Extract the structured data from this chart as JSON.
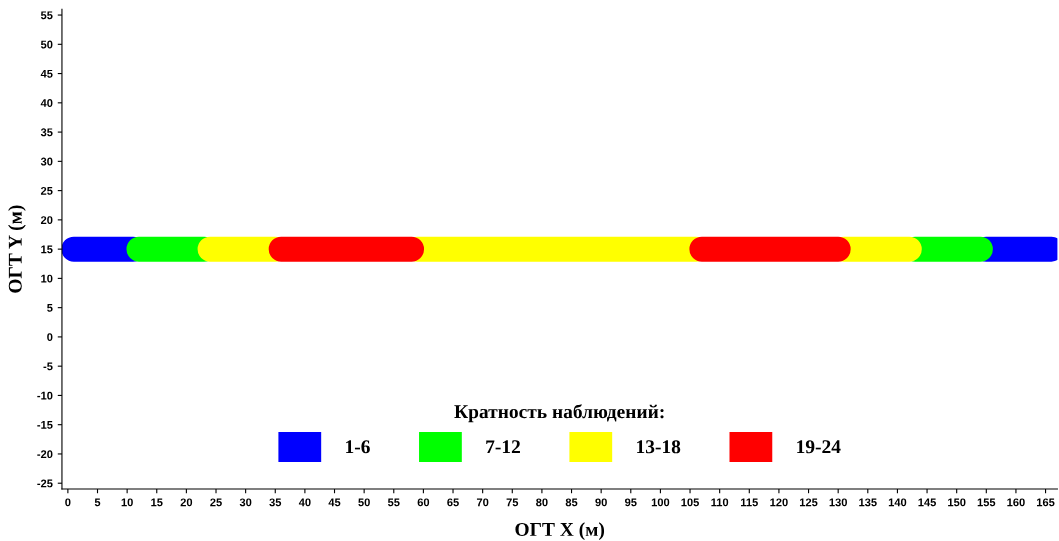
{
  "chart_data": {
    "type": "line",
    "xlabel": "ОГТ X (м)",
    "ylabel": "ОГТ Y (м)",
    "legend_title": "Кратность наблюдений:",
    "legend": "bottom",
    "grid": false,
    "line_style": "solid",
    "xlim": [
      -1,
      167
    ],
    "xticks": [
      0,
      5,
      10,
      15,
      20,
      25,
      30,
      35,
      40,
      45,
      50,
      55,
      60,
      65,
      70,
      75,
      80,
      85,
      90,
      95,
      100,
      105,
      110,
      115,
      120,
      125,
      130,
      135,
      140,
      145,
      150,
      155,
      160,
      165
    ],
    "ylim": [
      -26,
      56
    ],
    "yticks": [
      -25,
      -20,
      -15,
      -10,
      -5,
      0,
      5,
      10,
      15,
      20,
      25,
      30,
      35,
      40,
      45,
      50,
      55
    ],
    "series": [
      {
        "name": "1-6",
        "color": "#0000ff",
        "x": [
          1,
          11,
          null,
          155,
          166
        ],
        "values": [
          15,
          15,
          null,
          15,
          15
        ]
      },
      {
        "name": "7-12",
        "color": "#00ff00",
        "x": [
          12,
          23,
          null,
          143,
          154
        ],
        "values": [
          15,
          15,
          null,
          15,
          15
        ]
      },
      {
        "name": "13-18",
        "color": "#ffff00",
        "x": [
          24,
          35,
          null,
          59,
          106,
          null,
          131,
          142
        ],
        "values": [
          15,
          15,
          null,
          15,
          15,
          null,
          15,
          15
        ]
      },
      {
        "name": "19-24",
        "color": "#ff0000",
        "x": [
          36,
          58,
          null,
          107,
          130
        ],
        "values": [
          15,
          15,
          null,
          15,
          15
        ]
      }
    ]
  }
}
